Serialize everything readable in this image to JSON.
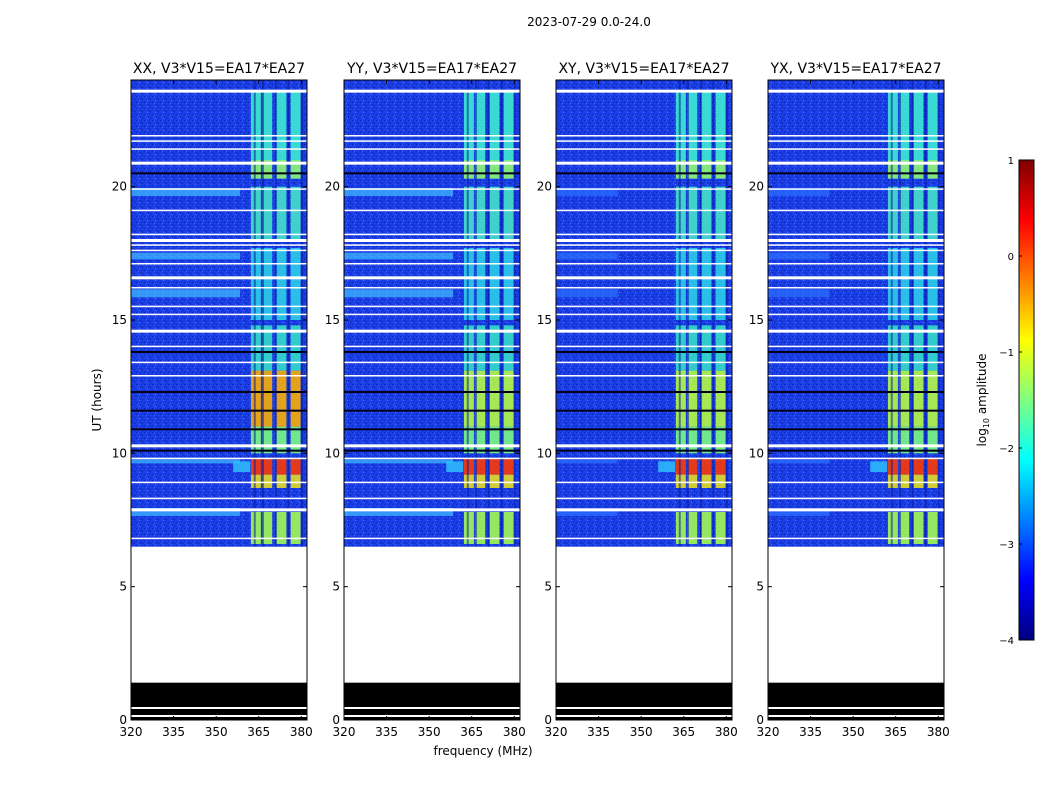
{
  "chart_data": {
    "type": "heatmap",
    "title": "2023-07-29 0.0-24.0",
    "xlabel": "frequency (MHz)",
    "ylabel": "UT (hours)",
    "xlim": [
      320,
      382
    ],
    "ylim": [
      0,
      24
    ],
    "xticks": [
      320,
      335,
      350,
      365,
      380
    ],
    "yticks": [
      0,
      5,
      10,
      15,
      20
    ],
    "panels": [
      {
        "name": "XX",
        "title": "XX, V3*V15=EA17*EA27"
      },
      {
        "name": "YY",
        "title": "YY, V3*V15=EA17*EA27"
      },
      {
        "name": "XY",
        "title": "XY, V3*V15=EA17*EA27"
      },
      {
        "name": "YX",
        "title": "YX, V3*V15=EA17*EA27"
      }
    ],
    "data_start_hour": 6.5,
    "flagged_black_hours": [
      0.0,
      1.4
    ],
    "colorbar": {
      "label": "log10 amplitude",
      "range": [
        -4,
        1
      ],
      "ticks": [
        1,
        0,
        -1,
        -2,
        -3,
        -4
      ],
      "tick_labels": [
        "1",
        "0",
        "−1",
        "−2",
        "−3",
        "−4"
      ],
      "colormap": [
        "#00007f",
        "#0000ff",
        "#007fff",
        "#00ffff",
        "#7fff7f",
        "#ffff00",
        "#ff7f00",
        "#ff0000",
        "#7f0000"
      ]
    }
  }
}
